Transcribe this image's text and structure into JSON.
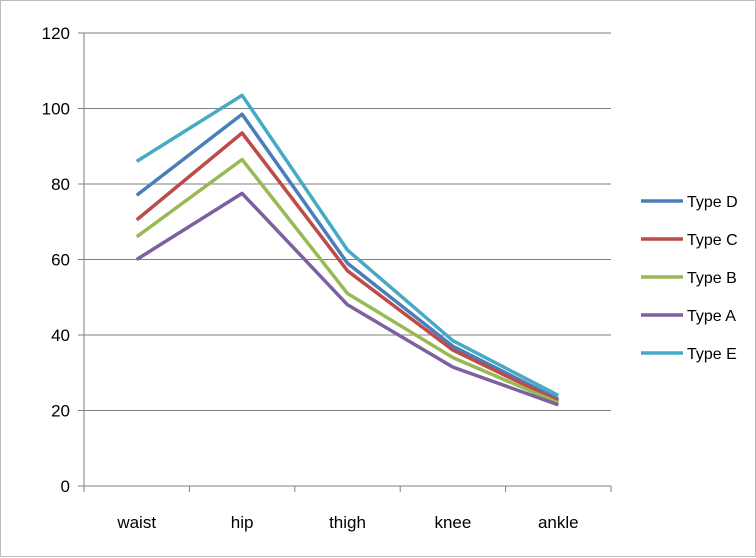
{
  "chart_data": {
    "type": "line",
    "title": "",
    "xlabel": "",
    "ylabel": "",
    "categories": [
      "waist",
      "hip",
      "thigh",
      "knee",
      "ankle"
    ],
    "ylim": [
      0,
      120
    ],
    "yticks": [
      "0",
      "20",
      "40",
      "60",
      "80",
      "100",
      "120"
    ],
    "grid": true,
    "legend_position": "right",
    "series": [
      {
        "name": "Type D",
        "color": "#4A7EBB",
        "values": [
          77,
          98.5,
          59,
          37,
          23
        ]
      },
      {
        "name": "Type C",
        "color": "#BE4B48",
        "values": [
          70.5,
          93.5,
          57,
          36,
          22.5
        ]
      },
      {
        "name": "Type B",
        "color": "#98B954",
        "values": [
          66,
          86.5,
          51,
          34,
          22
        ]
      },
      {
        "name": "Type A",
        "color": "#7D60A0",
        "values": [
          60,
          77.5,
          48,
          31.5,
          21.5
        ]
      },
      {
        "name": "Type E",
        "color": "#46AAC5",
        "values": [
          86,
          103.5,
          62.5,
          38.5,
          24
        ]
      }
    ]
  }
}
